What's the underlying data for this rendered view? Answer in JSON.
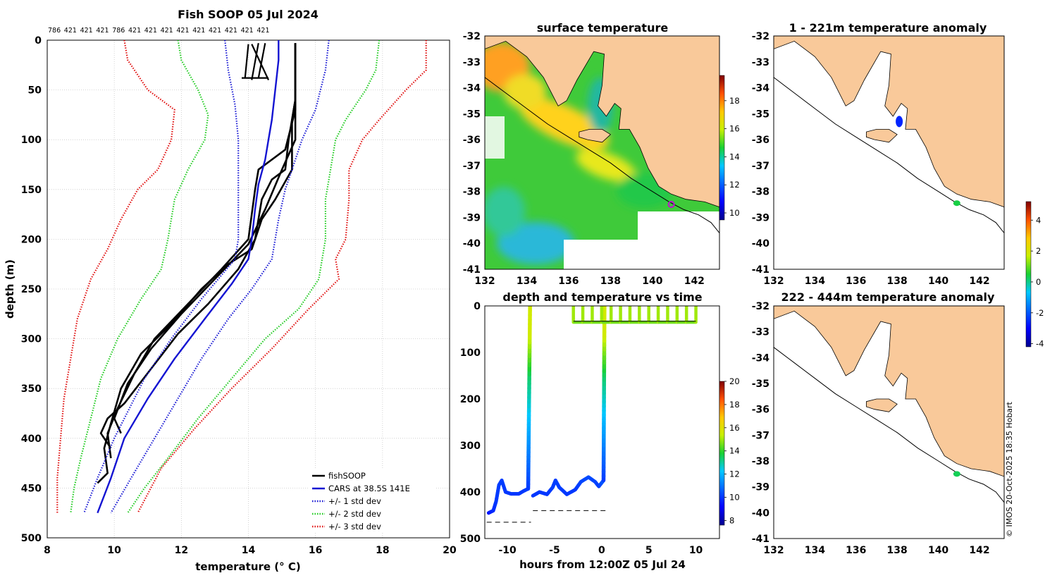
{
  "figure": {
    "watermark": "© IMOS 20-Oct-2025 18:35 Hobart",
    "land_color": "#f9c99a",
    "colors": {
      "fish": "#000000",
      "cars": "#1414d2",
      "std1": "#1a1ad4",
      "std2": "#22cc22",
      "std3": "#e01010"
    }
  },
  "chart_data": [
    {
      "id": "profile",
      "type": "line",
      "title": "Fish SOOP 05 Jul 2024",
      "xlabel": "temperature (° C)",
      "ylabel": "depth (m)",
      "xlim": [
        8,
        20
      ],
      "ylim": [
        500,
        0
      ],
      "xticks": [
        8,
        10,
        12,
        14,
        16,
        18,
        20
      ],
      "yticks": [
        0,
        50,
        100,
        150,
        200,
        250,
        300,
        350,
        400,
        450,
        500
      ],
      "grid": true,
      "top_counts": [
        "786",
        "421",
        "421",
        "421",
        "786",
        "421",
        "421",
        "421",
        "421",
        "421",
        "421",
        "421",
        "421",
        "421"
      ],
      "legend": [
        "fishSOOP",
        "CARS at 38.5S 141E",
        "+/- 1 std dev",
        "+/- 2 std dev",
        "+/- 3 std dev"
      ],
      "series": [
        {
          "name": "fishSOOP cast A",
          "style": "fish",
          "points": [
            [
              15.4,
              3
            ],
            [
              15.4,
              60
            ],
            [
              15.3,
              80
            ],
            [
              15.3,
              130
            ],
            [
              14.8,
              160
            ],
            [
              14.4,
              180
            ],
            [
              14.1,
              210
            ],
            [
              13.4,
              225
            ],
            [
              12.6,
              250
            ],
            [
              11.7,
              285
            ],
            [
              10.8,
              315
            ],
            [
              10.2,
              350
            ],
            [
              9.9,
              385
            ],
            [
              9.7,
              410
            ],
            [
              9.8,
              435
            ],
            [
              9.5,
              445
            ]
          ]
        },
        {
          "name": "fishSOOP cast B",
          "style": "fish",
          "points": [
            [
              15.4,
              3
            ],
            [
              15.4,
              60
            ],
            [
              15.2,
              100
            ],
            [
              15.1,
              130
            ],
            [
              14.7,
              140
            ],
            [
              14.4,
              160
            ],
            [
              14.2,
              200
            ],
            [
              13.7,
              230
            ],
            [
              12.8,
              265
            ],
            [
              11.9,
              295
            ],
            [
              11.1,
              330
            ],
            [
              10.3,
              365
            ],
            [
              9.8,
              380
            ],
            [
              9.6,
              395
            ],
            [
              9.9,
              410
            ]
          ]
        },
        {
          "name": "fishSOOP cast C",
          "style": "fish",
          "points": [
            [
              15.4,
              3
            ],
            [
              15.4,
              70
            ],
            [
              15.1,
              110
            ],
            [
              14.3,
              130
            ],
            [
              14.2,
              150
            ],
            [
              14.0,
              200
            ],
            [
              13.2,
              230
            ],
            [
              12.2,
              265
            ],
            [
              11.2,
              300
            ],
            [
              10.6,
              335
            ],
            [
              10.1,
              370
            ],
            [
              9.8,
              395
            ],
            [
              9.9,
              420
            ]
          ]
        },
        {
          "name": "fishSOOP cast D",
          "style": "fish",
          "points": [
            [
              15.4,
              3
            ],
            [
              15.4,
              100
            ],
            [
              15.0,
              130
            ],
            [
              14.5,
              170
            ],
            [
              14.0,
              205
            ],
            [
              13.0,
              240
            ],
            [
              12.0,
              275
            ],
            [
              11.1,
              310
            ],
            [
              10.4,
              345
            ],
            [
              10.0,
              380
            ],
            [
              10.2,
              395
            ]
          ]
        },
        {
          "name": "CARS at 38.5S 141E",
          "style": "cars",
          "points": [
            [
              14.9,
              0
            ],
            [
              14.9,
              20
            ],
            [
              14.8,
              50
            ],
            [
              14.7,
              80
            ],
            [
              14.6,
              100
            ],
            [
              14.5,
              120
            ],
            [
              14.3,
              145
            ],
            [
              14.2,
              170
            ],
            [
              14.1,
              200
            ],
            [
              14.0,
              220
            ],
            [
              13.5,
              245
            ],
            [
              12.7,
              280
            ],
            [
              11.8,
              320
            ],
            [
              11.0,
              360
            ],
            [
              10.3,
              400
            ],
            [
              9.9,
              440
            ],
            [
              9.5,
              475
            ]
          ]
        },
        {
          "name": "+/- 1 std dev (low)",
          "style": "std1",
          "points": [
            [
              13.3,
              0
            ],
            [
              13.4,
              30
            ],
            [
              13.6,
              65
            ],
            [
              13.7,
              100
            ],
            [
              13.7,
              150
            ],
            [
              13.7,
              200
            ],
            [
              13.6,
              220
            ],
            [
              12.6,
              260
            ],
            [
              11.7,
              300
            ],
            [
              10.9,
              340
            ],
            [
              10.0,
              400
            ],
            [
              9.5,
              440
            ],
            [
              9.1,
              475
            ]
          ]
        },
        {
          "name": "+/- 1 std dev (high)",
          "style": "std1",
          "points": [
            [
              16.4,
              0
            ],
            [
              16.3,
              30
            ],
            [
              16.0,
              70
            ],
            [
              15.6,
              100
            ],
            [
              15.3,
              130
            ],
            [
              15.1,
              150
            ],
            [
              14.9,
              180
            ],
            [
              14.7,
              220
            ],
            [
              14.1,
              250
            ],
            [
              13.4,
              280
            ],
            [
              12.6,
              320
            ],
            [
              11.9,
              360
            ],
            [
              11.2,
              400
            ],
            [
              10.5,
              440
            ],
            [
              9.9,
              475
            ]
          ]
        },
        {
          "name": "+/- 2 std dev (low)",
          "style": "std2",
          "points": [
            [
              11.9,
              0
            ],
            [
              12.0,
              20
            ],
            [
              12.5,
              50
            ],
            [
              12.8,
              75
            ],
            [
              12.7,
              100
            ],
            [
              12.2,
              130
            ],
            [
              11.8,
              160
            ],
            [
              11.6,
              200
            ],
            [
              11.4,
              230
            ],
            [
              10.8,
              260
            ],
            [
              10.1,
              300
            ],
            [
              9.6,
              340
            ],
            [
              9.3,
              380
            ],
            [
              9.0,
              420
            ],
            [
              8.8,
              450
            ],
            [
              8.7,
              475
            ]
          ]
        },
        {
          "name": "+/- 2 std dev (high)",
          "style": "std2",
          "points": [
            [
              17.9,
              0
            ],
            [
              17.8,
              30
            ],
            [
              17.5,
              50
            ],
            [
              16.9,
              80
            ],
            [
              16.6,
              100
            ],
            [
              16.4,
              140
            ],
            [
              16.3,
              160
            ],
            [
              16.3,
              200
            ],
            [
              16.1,
              240
            ],
            [
              15.5,
              270
            ],
            [
              14.5,
              300
            ],
            [
              13.5,
              340
            ],
            [
              12.5,
              380
            ],
            [
              11.6,
              420
            ],
            [
              10.9,
              450
            ],
            [
              10.4,
              475
            ]
          ]
        },
        {
          "name": "+/- 3 std dev (low)",
          "style": "std3",
          "points": [
            [
              10.3,
              0
            ],
            [
              10.4,
              20
            ],
            [
              11.0,
              50
            ],
            [
              11.8,
              70
            ],
            [
              11.7,
              100
            ],
            [
              11.3,
              130
            ],
            [
              10.7,
              150
            ],
            [
              10.2,
              180
            ],
            [
              9.8,
              210
            ],
            [
              9.3,
              240
            ],
            [
              8.9,
              280
            ],
            [
              8.7,
              320
            ],
            [
              8.5,
              360
            ],
            [
              8.4,
              400
            ],
            [
              8.3,
              440
            ],
            [
              8.3,
              475
            ]
          ]
        },
        {
          "name": "+/- 3 std dev (high)",
          "style": "std3",
          "points": [
            [
              19.3,
              0
            ],
            [
              19.3,
              30
            ],
            [
              18.7,
              50
            ],
            [
              17.9,
              80
            ],
            [
              17.4,
              100
            ],
            [
              17.0,
              130
            ],
            [
              17.0,
              160
            ],
            [
              16.9,
              200
            ],
            [
              16.6,
              220
            ],
            [
              16.7,
              240
            ],
            [
              15.8,
              270
            ],
            [
              14.7,
              310
            ],
            [
              13.5,
              350
            ],
            [
              12.4,
              390
            ],
            [
              11.4,
              430
            ],
            [
              10.7,
              475
            ]
          ]
        }
      ]
    },
    {
      "id": "sst_map",
      "type": "heatmap",
      "title": "surface temperature",
      "xlim": [
        132,
        143.2
      ],
      "ylim": [
        -41,
        -32
      ],
      "xticks": [
        132,
        134,
        136,
        138,
        140,
        142
      ],
      "yticks": [
        -32,
        -33,
        -34,
        -35,
        -36,
        -37,
        -38,
        -39,
        -40,
        -41
      ],
      "colorbar": {
        "range": [
          9.5,
          19.8
        ],
        "ticks": [
          10,
          12,
          14,
          16,
          18
        ]
      },
      "marker": {
        "lon": 140.9,
        "lat": -38.5
      }
    },
    {
      "id": "time_series",
      "type": "scatter",
      "title": "depth and temperature vs time",
      "xlabel": "hours from 12:00Z 05 Jul 24",
      "xlim": [
        -12.4,
        12.5
      ],
      "ylim": [
        500,
        0
      ],
      "xticks": [
        -10,
        -5,
        0,
        5,
        10
      ],
      "yticks": [
        0,
        100,
        200,
        300,
        400,
        500
      ],
      "colorbar": {
        "range": [
          7.6,
          20
        ],
        "ticks": [
          8,
          10,
          12,
          14,
          16,
          18,
          20
        ]
      },
      "tracks": [
        {
          "points": [
            [
              -12.0,
              445,
              9.4
            ],
            [
              -11.5,
              440,
              9.8
            ],
            [
              -11.2,
              420,
              10.0
            ],
            [
              -10.9,
              385,
              10.1
            ],
            [
              -10.6,
              375,
              10.1
            ],
            [
              -10.2,
              400,
              10.0
            ],
            [
              -9.6,
              404,
              10.0
            ],
            [
              -8.8,
              404,
              10.0
            ],
            [
              -8.3,
              398,
              10.0
            ],
            [
              -7.8,
              393,
              10.1
            ],
            [
              -7.6,
              0,
              15.6
            ]
          ]
        },
        {
          "points": [
            [
              -7.3,
              408,
              10.0
            ],
            [
              -6.6,
              400,
              10.0
            ],
            [
              -5.8,
              405,
              10.0
            ],
            [
              -5.2,
              390,
              10.1
            ],
            [
              -4.9,
              375,
              10.1
            ],
            [
              -4.5,
              390,
              10.1
            ],
            [
              -3.7,
              405,
              10.0
            ],
            [
              -2.8,
              395,
              10.0
            ],
            [
              -2.2,
              378,
              10.2
            ],
            [
              -1.4,
              368,
              10.3
            ],
            [
              -0.7,
              378,
              10.2
            ],
            [
              -0.3,
              388,
              10.1
            ],
            [
              0.2,
              375,
              10.6
            ],
            [
              0.3,
              0,
              15.6
            ]
          ]
        }
      ],
      "dives": [
        -7.6,
        -3.0,
        -2.0,
        -1.0,
        0.0,
        1.0,
        2.0,
        3.0,
        4.0,
        5.0,
        6.0,
        7.0,
        8.0,
        9.0,
        10.0
      ],
      "surface_depth": 35,
      "bottom_refs": [
        {
          "x": [
            -12.2,
            -7.5
          ],
          "y": 465
        },
        {
          "x": [
            -7.3,
            0.6
          ],
          "y": 440
        }
      ]
    },
    {
      "id": "anom_map_1",
      "type": "heatmap",
      "title": "1 - 221m temperature anomaly",
      "xlim": [
        132,
        143.2
      ],
      "ylim": [
        -41,
        -32
      ],
      "xticks": [
        132,
        134,
        136,
        138,
        140,
        142
      ],
      "yticks": [
        -32,
        -33,
        -34,
        -35,
        -36,
        -37,
        -38,
        -39,
        -40,
        -41
      ],
      "colorbar": {
        "range": [
          -4.2,
          5.2
        ],
        "ticks": [
          4,
          2,
          0,
          -2,
          -4
        ]
      },
      "points": [
        {
          "lon": 138.1,
          "lat": -35.3,
          "anomaly": -2.6
        },
        {
          "lon": 140.9,
          "lat": -38.45,
          "anomaly": 0.4
        }
      ]
    },
    {
      "id": "anom_map_2",
      "type": "heatmap",
      "title": "222 - 444m temperature anomaly",
      "xlim": [
        132,
        143.2
      ],
      "ylim": [
        -41,
        -32
      ],
      "xticks": [
        132,
        134,
        136,
        138,
        140,
        142
      ],
      "yticks": [
        -32,
        -33,
        -34,
        -35,
        -36,
        -37,
        -38,
        -39,
        -40,
        -41
      ],
      "points": [
        {
          "lon": 140.9,
          "lat": -38.5,
          "anomaly": 0.3
        }
      ]
    }
  ]
}
